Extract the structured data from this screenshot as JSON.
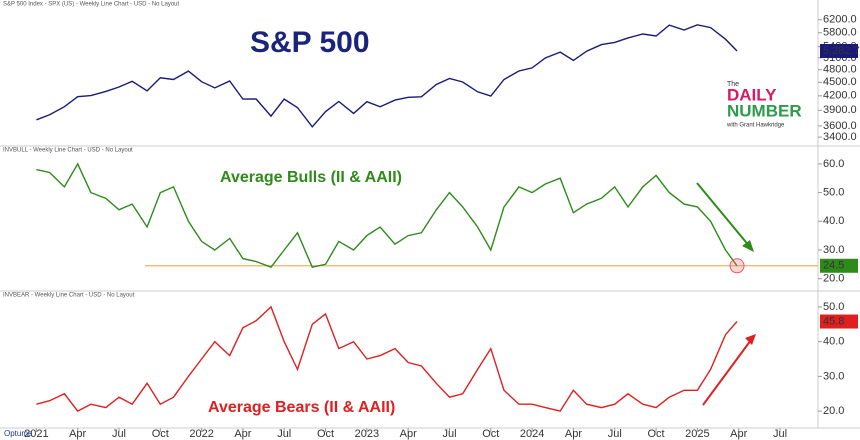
{
  "chart_data": [
    {
      "type": "line",
      "header": "S&P 500 Index - SPX (US) - Weekly Line Chart - USD - No Layout",
      "title": "S&P 500",
      "title_color": "#1a237e",
      "color": "#1a1a7a",
      "log": true,
      "x": [
        2021.0,
        2021.08,
        2021.17,
        2021.25,
        2021.33,
        2021.42,
        2021.5,
        2021.58,
        2021.67,
        2021.75,
        2021.83,
        2021.92,
        2022.0,
        2022.08,
        2022.17,
        2022.25,
        2022.33,
        2022.42,
        2022.5,
        2022.58,
        2022.67,
        2022.75,
        2022.83,
        2022.92,
        2023.0,
        2023.08,
        2023.17,
        2023.25,
        2023.33,
        2023.42,
        2023.5,
        2023.58,
        2023.67,
        2023.75,
        2023.83,
        2023.92,
        2024.0,
        2024.08,
        2024.17,
        2024.25,
        2024.33,
        2024.42,
        2024.5,
        2024.58,
        2024.67,
        2024.75,
        2024.83,
        2024.92,
        2025.0,
        2025.08,
        2025.17,
        2025.24
      ],
      "values": [
        3714,
        3811,
        3973,
        4181,
        4204,
        4297,
        4395,
        4523,
        4307,
        4605,
        4567,
        4766,
        4515,
        4373,
        4530,
        4131,
        4132,
        3785,
        4130,
        3955,
        3585,
        3872,
        4080,
        3839,
        4076,
        3970,
        4109,
        4169,
        4179,
        4450,
        4589,
        4507,
        4288,
        4193,
        4567,
        4770,
        4845,
        5096,
        5254,
        5035,
        5277,
        5460,
        5522,
        5648,
        5762,
        5705,
        6032,
        5881,
        6040,
        5955,
        5611,
        5282.7
      ],
      "last_label": "5,282.7",
      "xlim": [
        2020.78,
        2025.73
      ],
      "ylim": [
        3350,
        6450
      ],
      "yticks": [
        {
          "value": 3400,
          "label": "3400.0"
        },
        {
          "value": 3600,
          "label": "3600.0"
        },
        {
          "value": 3900,
          "label": "3900.0"
        },
        {
          "value": 4200,
          "label": "4200.0"
        },
        {
          "value": 4500,
          "label": "4500.0"
        },
        {
          "value": 4800,
          "label": "4800.0"
        },
        {
          "value": 5100,
          "label": "5100.0"
        },
        {
          "value": 5400,
          "label": "5400.0"
        },
        {
          "value": 5800,
          "label": "5800.0"
        },
        {
          "value": 6200,
          "label": "6200.0"
        }
      ]
    },
    {
      "type": "line",
      "header": "INVBULL - Weekly Line Chart - USD - No Layout",
      "title": "Average Bulls (II & AAII)",
      "title_color": "#2e8b1a",
      "color": "#2e8b1a",
      "log": false,
      "x": [
        2021.0,
        2021.08,
        2021.17,
        2021.25,
        2021.33,
        2021.42,
        2021.5,
        2021.58,
        2021.67,
        2021.75,
        2021.83,
        2021.92,
        2022.0,
        2022.08,
        2022.17,
        2022.25,
        2022.33,
        2022.42,
        2022.5,
        2022.58,
        2022.67,
        2022.75,
        2022.83,
        2022.92,
        2023.0,
        2023.08,
        2023.17,
        2023.25,
        2023.33,
        2023.42,
        2023.5,
        2023.58,
        2023.67,
        2023.75,
        2023.83,
        2023.92,
        2024.0,
        2024.08,
        2024.17,
        2024.25,
        2024.33,
        2024.42,
        2024.5,
        2024.58,
        2024.67,
        2024.75,
        2024.83,
        2024.92,
        2025.0,
        2025.08,
        2025.17,
        2025.24
      ],
      "values": [
        58,
        57,
        52,
        60,
        50,
        48,
        44,
        46,
        38,
        50,
        52,
        40,
        33,
        30,
        34,
        27,
        26,
        24,
        30,
        36,
        24,
        25,
        33,
        30,
        35,
        38,
        32,
        35,
        36,
        44,
        50,
        45,
        38,
        30,
        45,
        52,
        50,
        53,
        55,
        43,
        46,
        48,
        52,
        45,
        52,
        56,
        50,
        46,
        45,
        40,
        30,
        24.5
      ],
      "last_label": "24.5",
      "reference_line": 24.5,
      "reference_color": "#f0b060",
      "xlim": [
        2020.78,
        2025.73
      ],
      "ylim": [
        17.8,
        63.1
      ],
      "yticks": [
        {
          "value": 20,
          "label": "20.0"
        },
        {
          "value": 30,
          "label": "30.0"
        },
        {
          "value": 40,
          "label": "40.0"
        },
        {
          "value": 50,
          "label": "50.0"
        },
        {
          "value": 60,
          "label": "60.0"
        }
      ]
    },
    {
      "type": "line",
      "header": "INVBEAR - Weekly Line Chart - USD - No Layout",
      "title": "Average Bears (II & AAII)",
      "title_color": "#e02020",
      "color": "#e02020",
      "log": false,
      "x": [
        2021.0,
        2021.08,
        2021.17,
        2021.25,
        2021.33,
        2021.42,
        2021.5,
        2021.58,
        2021.67,
        2021.75,
        2021.83,
        2021.92,
        2022.0,
        2022.08,
        2022.17,
        2022.25,
        2022.33,
        2022.42,
        2022.5,
        2022.58,
        2022.67,
        2022.75,
        2022.83,
        2022.92,
        2023.0,
        2023.08,
        2023.17,
        2023.25,
        2023.33,
        2023.42,
        2023.5,
        2023.58,
        2023.67,
        2023.75,
        2023.83,
        2023.92,
        2024.0,
        2024.08,
        2024.17,
        2024.25,
        2024.33,
        2024.42,
        2024.5,
        2024.58,
        2024.67,
        2024.75,
        2024.83,
        2024.92,
        2025.0,
        2025.08,
        2025.17,
        2025.24
      ],
      "values": [
        22,
        23,
        25,
        20,
        22,
        21,
        24,
        22,
        28,
        22,
        24,
        30,
        35,
        40,
        36,
        44,
        46,
        50,
        40,
        32,
        45,
        48,
        38,
        40,
        35,
        36,
        38,
        34,
        33,
        28,
        24,
        25,
        32,
        38,
        26,
        22,
        22,
        21,
        20,
        26,
        22,
        21,
        22,
        25,
        22,
        21,
        24,
        26,
        26,
        32,
        42,
        45.8
      ],
      "last_label": "45.8",
      "xlim": [
        2020.78,
        2025.73
      ],
      "ylim": [
        16,
        52
      ],
      "yticks": [
        {
          "value": 20,
          "label": "20.0"
        },
        {
          "value": 30,
          "label": "30.0"
        },
        {
          "value": 40,
          "label": "40.0"
        },
        {
          "value": 50,
          "label": "50.0"
        }
      ],
      "xticks": [
        {
          "value": 2021,
          "label": "2021"
        },
        {
          "value": 2021.25,
          "label": "Apr"
        },
        {
          "value": 2021.5,
          "label": "Jul"
        },
        {
          "value": 2021.75,
          "label": "Oct"
        },
        {
          "value": 2022,
          "label": "2022"
        },
        {
          "value": 2022.25,
          "label": "Apr"
        },
        {
          "value": 2022.5,
          "label": "Jul"
        },
        {
          "value": 2022.75,
          "label": "Oct"
        },
        {
          "value": 2023,
          "label": "2023"
        },
        {
          "value": 2023.25,
          "label": "Apr"
        },
        {
          "value": 2023.5,
          "label": "Jul"
        },
        {
          "value": 2023.75,
          "label": "Oct"
        },
        {
          "value": 2024,
          "label": "2024"
        },
        {
          "value": 2024.25,
          "label": "Apr"
        },
        {
          "value": 2024.5,
          "label": "Jul"
        },
        {
          "value": 2024.75,
          "label": "Oct"
        },
        {
          "value": 2025,
          "label": "2025"
        },
        {
          "value": 2025.25,
          "label": "Apr"
        },
        {
          "value": 2025.5,
          "label": "Jul"
        }
      ]
    }
  ],
  "logo": {
    "the": "The",
    "daily": "DAILY",
    "number": "NUMBER",
    "byline": "with Grant Hawkridge"
  },
  "footer": "Optuma"
}
